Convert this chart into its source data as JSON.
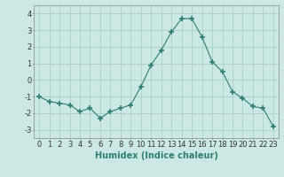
{
  "x": [
    0,
    1,
    2,
    3,
    4,
    5,
    6,
    7,
    8,
    9,
    10,
    11,
    12,
    13,
    14,
    15,
    16,
    17,
    18,
    19,
    20,
    21,
    22,
    23
  ],
  "y": [
    -1.0,
    -1.3,
    -1.4,
    -1.5,
    -1.9,
    -1.7,
    -2.3,
    -1.9,
    -1.7,
    -1.5,
    -0.4,
    0.9,
    1.8,
    2.9,
    3.7,
    3.7,
    2.6,
    1.1,
    0.5,
    -0.7,
    -1.1,
    -1.6,
    -1.7,
    -2.8
  ],
  "line_color": "#2d7f72",
  "marker": "+",
  "marker_size": 5,
  "background_color": "#cce8e4",
  "grid_color": "#aacfca",
  "xlabel": "Humidex (Indice chaleur)",
  "ylabel": "",
  "title": "",
  "xlim": [
    -0.5,
    23.5
  ],
  "ylim": [
    -3.5,
    4.5
  ],
  "yticks": [
    -3,
    -2,
    -1,
    0,
    1,
    2,
    3,
    4
  ],
  "xticks": [
    0,
    1,
    2,
    3,
    4,
    5,
    6,
    7,
    8,
    9,
    10,
    11,
    12,
    13,
    14,
    15,
    16,
    17,
    18,
    19,
    20,
    21,
    22,
    23
  ],
  "tick_label_fontsize": 6,
  "xlabel_fontsize": 7
}
